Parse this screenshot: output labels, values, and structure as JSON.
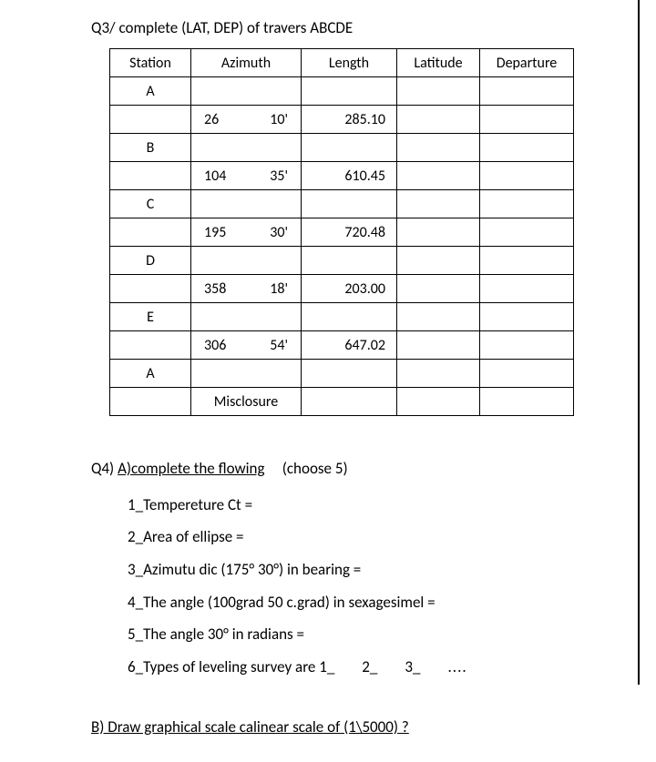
{
  "q3": {
    "heading": "Q3/ complete (LAT, DEP) of travers ABCDE",
    "headers": {
      "station": "Station",
      "azimuth": "Azimuth",
      "length": "Length",
      "latitude": "Latitude",
      "departure": "Departure"
    },
    "rows": [
      {
        "station": "A",
        "az_deg": "",
        "az_min": "",
        "length": ""
      },
      {
        "station": "",
        "az_deg": "26",
        "az_min": "10'",
        "length": "285.10"
      },
      {
        "station": "B",
        "az_deg": "",
        "az_min": "",
        "length": ""
      },
      {
        "station": "",
        "az_deg": "104",
        "az_min": "35'",
        "length": "610.45"
      },
      {
        "station": "C",
        "az_deg": "",
        "az_min": "",
        "length": ""
      },
      {
        "station": "",
        "az_deg": "195",
        "az_min": "30'",
        "length": "720.48"
      },
      {
        "station": "D",
        "az_deg": "",
        "az_min": "",
        "length": ""
      },
      {
        "station": "",
        "az_deg": "358",
        "az_min": "18'",
        "length": "203.00"
      },
      {
        "station": "E",
        "az_deg": "",
        "az_min": "",
        "length": ""
      },
      {
        "station": "",
        "az_deg": "306",
        "az_min": "54'",
        "length": "647.02"
      },
      {
        "station": "A",
        "az_deg": "",
        "az_min": "",
        "length": ""
      }
    ],
    "misclosure": "Misclosure"
  },
  "q4": {
    "head_prefix": "Q4) ",
    "head_underlined": "A)complete the flowing",
    "head_suffix": "(choose 5)",
    "items": {
      "i1": "1_Tempereture Ct =",
      "i2": "2_Area of ellipse =",
      "i3": "3_Azimutu dic (175°  30°) in bearing =",
      "i4": "4_The angle (100grad 50 c.grad) in sexagesimel =",
      "i5": "5_The angle  30° in radians =",
      "i6_prefix": "6_Types of leveling survey are 1_",
      "i6_2": "2_",
      "i6_3": "3_",
      "i6_dots": "...."
    },
    "partB": "B) Draw graphical scale calinear  scale of (1\\5000) ?"
  }
}
